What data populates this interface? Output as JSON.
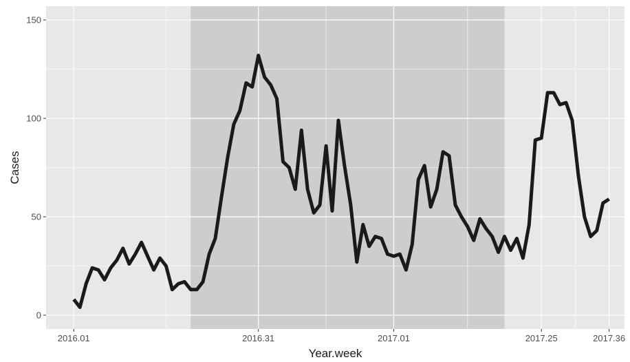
{
  "chart_data": {
    "type": "line",
    "xlabel": "Year.week",
    "ylabel": "Cases",
    "x_tick_labels": [
      "2016.01",
      "2016.31",
      "2017.01",
      "2017.25",
      "2017.36"
    ],
    "y_tick_labels": [
      "0",
      "50",
      "100",
      "150"
    ],
    "y_ticks": [
      0,
      50,
      100,
      150
    ],
    "ylim": [
      -7,
      157
    ],
    "grid": true,
    "colors": {
      "panel": "#e8e8e8",
      "shaded_region": "#cdcdcd",
      "grid": "#ffffff",
      "line": "#1a1a1a"
    },
    "x_ticks_index": [
      0,
      30,
      52,
      76,
      87
    ],
    "xlim_index": [
      -4.5,
      89.5
    ],
    "shaded_region_index": [
      19,
      70
    ],
    "series": [
      {
        "values": [
          8,
          4,
          16,
          24,
          23,
          18,
          24,
          28,
          34,
          26,
          31,
          37,
          30,
          23,
          29,
          25,
          13,
          16,
          17,
          13,
          13,
          17,
          31,
          39,
          60,
          80,
          97,
          104,
          118,
          116,
          132,
          121,
          117,
          110,
          78,
          75,
          64,
          94,
          64,
          52,
          56,
          86,
          53,
          99,
          76,
          56,
          27,
          46,
          35,
          40,
          39,
          31,
          30,
          31,
          23,
          36,
          69,
          76,
          55,
          64,
          83,
          81,
          56,
          50,
          45,
          38,
          49,
          44,
          40,
          32,
          40,
          33,
          39,
          29,
          46,
          89,
          90,
          113,
          113,
          107,
          108,
          99,
          71,
          50,
          40,
          43,
          57,
          59
        ]
      }
    ]
  }
}
